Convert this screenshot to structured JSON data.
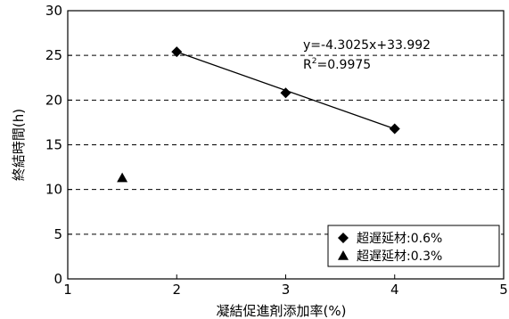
{
  "chart_data": {
    "type": "scatter",
    "xlabel": "凝結促進剤添加率(%)",
    "ylabel": "終結時間(h)",
    "xlim": [
      1,
      5
    ],
    "ylim": [
      0,
      30
    ],
    "x_ticks": [
      "1",
      "2",
      "3",
      "4",
      "5"
    ],
    "y_ticks": [
      "0",
      "5",
      "10",
      "15",
      "20",
      "25",
      "30"
    ],
    "grid": "horizontal dashed",
    "legend_position": "bottom-right",
    "series": [
      {
        "name": "超遅延材:0.6%",
        "marker": "diamond",
        "trendline": true,
        "points": [
          {
            "x": 2,
            "y": 25.4
          },
          {
            "x": 3,
            "y": 20.8
          },
          {
            "x": 4,
            "y": 16.8
          }
        ]
      },
      {
        "name": "超遅延材:0.3%",
        "marker": "triangle",
        "trendline": false,
        "points": [
          {
            "x": 1.5,
            "y": 11.3
          }
        ]
      }
    ],
    "trendline_equation": "y=-4.3025x+33.992",
    "trendline_r2_prefix": "R",
    "trendline_r2_sup": "2",
    "trendline_r2_value": "=0.9975",
    "trendline_slope": -4.3025,
    "trendline_intercept": 33.992
  }
}
